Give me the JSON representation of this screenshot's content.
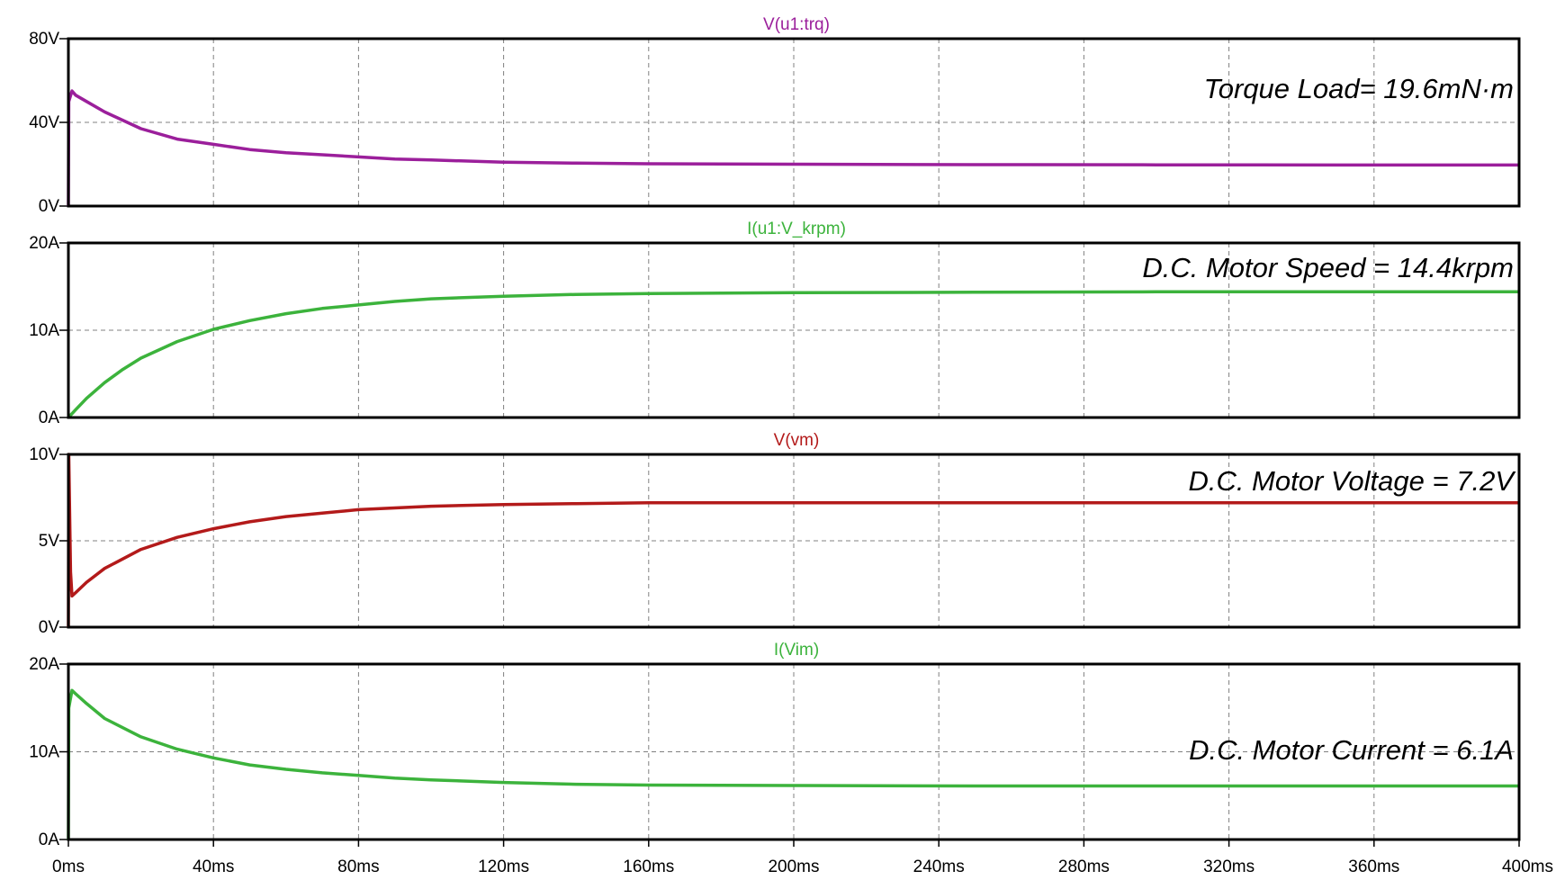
{
  "colors": {
    "background": "#ffffff",
    "frame": "#000000",
    "grid": "#808080",
    "purple": "#9b1f9b",
    "green": "#3cb33c",
    "red": "#b31a1a"
  },
  "x_axis": {
    "unit": "ms",
    "range": [
      0,
      400
    ],
    "ticks": [
      "0ms",
      "40ms",
      "80ms",
      "120ms",
      "160ms",
      "200ms",
      "240ms",
      "280ms",
      "320ms",
      "360ms",
      "400ms"
    ]
  },
  "chart_data": [
    {
      "type": "line",
      "title": "V(u1:trq)",
      "annotation": "Torque Load= 19.6mN·m",
      "color": "purple",
      "yticks": [
        "0V",
        "40V",
        "80V"
      ],
      "ylim": [
        0,
        80
      ],
      "grid": true,
      "series": [
        {
          "x": [
            0,
            0.1,
            1,
            2,
            5,
            10,
            20,
            30,
            40,
            50,
            60,
            70,
            80,
            90,
            100,
            120,
            140,
            160,
            200,
            250,
            300,
            350,
            400
          ],
          "y": [
            0,
            50,
            55,
            53,
            50,
            45,
            37,
            32,
            29.5,
            27,
            25.5,
            24.5,
            23.5,
            22.5,
            22,
            21,
            20.5,
            20.2,
            20,
            19.8,
            19.7,
            19.6,
            19.6
          ]
        }
      ]
    },
    {
      "type": "line",
      "title": "I(u1:V_krpm)",
      "annotation": "D.C. Motor Speed = 14.4krpm",
      "color": "green",
      "yticks": [
        "0A",
        "10A",
        "20A"
      ],
      "ylim": [
        0,
        20
      ],
      "grid": true,
      "series": [
        {
          "x": [
            0,
            2,
            5,
            10,
            15,
            20,
            30,
            40,
            50,
            60,
            70,
            80,
            90,
            100,
            120,
            140,
            160,
            200,
            250,
            300,
            350,
            400
          ],
          "y": [
            0,
            0.9,
            2.2,
            4.0,
            5.5,
            6.8,
            8.7,
            10.1,
            11.1,
            11.9,
            12.5,
            12.9,
            13.3,
            13.6,
            13.9,
            14.1,
            14.2,
            14.3,
            14.35,
            14.4,
            14.4,
            14.4
          ]
        }
      ]
    },
    {
      "type": "line",
      "title": "V(vm)",
      "annotation": "D.C. Motor Voltage = 7.2V",
      "color": "red",
      "yticks": [
        "0V",
        "5V",
        "10V"
      ],
      "ylim": [
        0,
        10
      ],
      "grid": true,
      "series": [
        {
          "x": [
            0,
            0.1,
            0.6,
            1,
            2,
            5,
            10,
            20,
            30,
            40,
            50,
            60,
            70,
            80,
            90,
            100,
            120,
            140,
            160,
            200,
            250,
            300,
            400
          ],
          "y": [
            0,
            10,
            3.2,
            1.8,
            2.0,
            2.6,
            3.4,
            4.5,
            5.2,
            5.7,
            6.1,
            6.4,
            6.6,
            6.8,
            6.9,
            7.0,
            7.1,
            7.15,
            7.2,
            7.2,
            7.2,
            7.2,
            7.2
          ]
        }
      ]
    },
    {
      "type": "line",
      "title": "I(Vim)",
      "annotation": "D.C. Motor Current = 6.1A",
      "color": "green",
      "yticks": [
        "0A",
        "10A",
        "20A"
      ],
      "ylim": [
        0,
        20
      ],
      "grid": true,
      "series": [
        {
          "x": [
            0,
            0.1,
            1,
            2,
            5,
            10,
            20,
            30,
            40,
            50,
            60,
            70,
            80,
            90,
            100,
            120,
            140,
            160,
            200,
            250,
            300,
            400
          ],
          "y": [
            0,
            15,
            17,
            16.6,
            15.5,
            13.8,
            11.7,
            10.3,
            9.3,
            8.5,
            8.0,
            7.6,
            7.3,
            7.0,
            6.8,
            6.5,
            6.3,
            6.2,
            6.15,
            6.1,
            6.1,
            6.1
          ]
        }
      ]
    }
  ]
}
